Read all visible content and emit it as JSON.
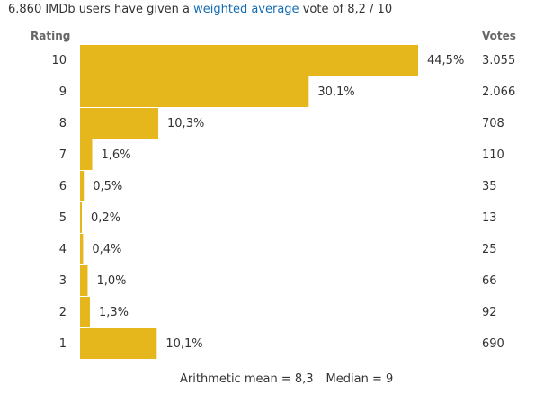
{
  "summary": {
    "prefix": "6.860 IMDb users have given a",
    "link": "weighted average",
    "suffix": "vote of 8,2 / 10"
  },
  "headers": {
    "rating": "Rating",
    "votes": "Votes"
  },
  "footer": {
    "mean": "Arithmetic mean = 8,3",
    "median": "Median = 9"
  },
  "colors": {
    "bar": "#e5b71d",
    "text": "#333333",
    "link": "#136cb2"
  },
  "chart_data": {
    "type": "bar",
    "orientation": "horizontal",
    "title": "6.860 IMDb users have given a weighted average vote of 8,2 / 10",
    "xlabel": "",
    "ylabel": "Rating",
    "xlim": [
      0,
      44.5
    ],
    "categories": [
      "10",
      "9",
      "8",
      "7",
      "6",
      "5",
      "4",
      "3",
      "2",
      "1"
    ],
    "values": [
      44.5,
      30.1,
      10.3,
      1.6,
      0.5,
      0.2,
      0.4,
      1.0,
      1.3,
      10.1
    ],
    "percent_labels": [
      "44,5%",
      "30,1%",
      "10,3%",
      "1,6%",
      "0,5%",
      "0,2%",
      "0,4%",
      "1,0%",
      "1,3%",
      "10,1%"
    ],
    "votes": [
      "3.055",
      "2.066",
      "708",
      "110",
      "35",
      "13",
      "25",
      "66",
      "92",
      "690"
    ]
  }
}
